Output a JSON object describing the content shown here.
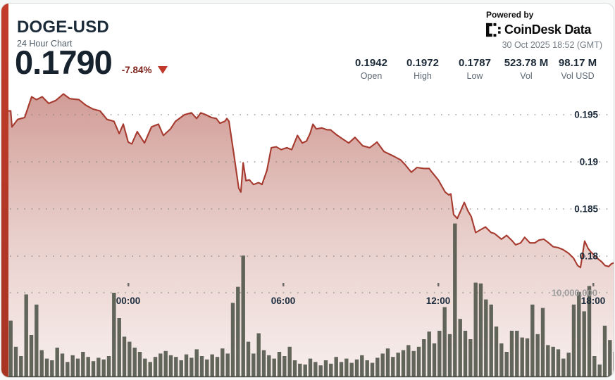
{
  "header": {
    "symbol": "DOGE-USD",
    "subtitle": "24 Hour Chart",
    "price": "0.1790",
    "change_pct": "-7.84%",
    "direction": "down"
  },
  "powered_by": {
    "label": "Powered by",
    "brand": "CoinDesk Data"
  },
  "timestamp": "30 Oct 2025 18:52 (GMT)",
  "stats": [
    {
      "value": "0.1942",
      "label": "Open"
    },
    {
      "value": "0.1972",
      "label": "High"
    },
    {
      "value": "0.1787",
      "label": "Low"
    },
    {
      "value": "523.78 M",
      "label": "Vol"
    },
    {
      "value": "98.17 M",
      "label": "Vol USD"
    }
  ],
  "colors": {
    "accent_red": "#c23b2b",
    "price_line": "#a63a2e",
    "area_top": "rgba(163,55,44,0.50)",
    "area_mid": "rgba(173,80,66,0.28)",
    "area_bottom": "rgba(181,96,80,0.10)",
    "volume_bar": "#55594d",
    "grid_dot": "#7d7d7d",
    "axis_text": "#1c2b3b",
    "muted_axis_text": "#9b9b9b",
    "negative": "#7e211b"
  },
  "chart_data": {
    "type": "area+bar",
    "title": "DOGE-USD 24 Hour Chart",
    "legend": "none",
    "grid": "dotted-horizontal",
    "x_axis": {
      "unit": "time (GMT), hours relative to 00:00",
      "range_t": [
        -4.55,
        18.87
      ],
      "ticks": [
        {
          "t": 0,
          "label": "00:00"
        },
        {
          "t": 6,
          "label": "06:00"
        },
        {
          "t": 12,
          "label": "12:00"
        },
        {
          "t": 18,
          "label": "18:00"
        }
      ]
    },
    "y_axis_price": {
      "side": "right",
      "visible_range": [
        0.1769,
        0.1978
      ],
      "ticks": [
        {
          "value": 0.195,
          "label": "0.195"
        },
        {
          "value": 0.19,
          "label": "0.19"
        },
        {
          "value": 0.185,
          "label": "0.185"
        },
        {
          "value": 0.18,
          "label": "0.18"
        }
      ]
    },
    "y_axis_volume": {
      "gridline_value": 10000000,
      "gridline_label": "10,000,000"
    },
    "price_series": {
      "name": "DOGE-USD price",
      "points": [
        [
          -4.55,
          0.1954
        ],
        [
          -4.5,
          0.1937
        ],
        [
          -4.28,
          0.1945
        ],
        [
          -4.01,
          0.1947
        ],
        [
          -3.74,
          0.1969
        ],
        [
          -3.55,
          0.1966
        ],
        [
          -3.33,
          0.1969
        ],
        [
          -3.08,
          0.1962
        ],
        [
          -2.81,
          0.1965
        ],
        [
          -2.51,
          0.1972
        ],
        [
          -2.26,
          0.1967
        ],
        [
          -1.91,
          0.1966
        ],
        [
          -1.64,
          0.196
        ],
        [
          -1.36,
          0.1956
        ],
        [
          -1.09,
          0.1954
        ],
        [
          -0.82,
          0.1945
        ],
        [
          -0.55,
          0.1943
        ],
        [
          -0.35,
          0.193
        ],
        [
          -0.19,
          0.194
        ],
        [
          0,
          0.1921
        ],
        [
          0.14,
          0.1919
        ],
        [
          0.35,
          0.1932
        ],
        [
          0.63,
          0.192
        ],
        [
          0.9,
          0.1937
        ],
        [
          1.17,
          0.194
        ],
        [
          1.36,
          0.1928
        ],
        [
          1.64,
          0.1935
        ],
        [
          1.83,
          0.1943
        ],
        [
          2.18,
          0.195
        ],
        [
          2.45,
          0.1952
        ],
        [
          2.65,
          0.1946
        ],
        [
          2.81,
          0.1952
        ],
        [
          3,
          0.195
        ],
        [
          3.22,
          0.1947
        ],
        [
          3.41,
          0.1946
        ],
        [
          3.55,
          0.1941
        ],
        [
          3.74,
          0.1943
        ],
        [
          3.82,
          0.1946
        ],
        [
          3.9,
          0.1943
        ],
        [
          4.09,
          0.1908
        ],
        [
          4.28,
          0.1872
        ],
        [
          4.36,
          0.1868
        ],
        [
          4.45,
          0.1899
        ],
        [
          4.56,
          0.188
        ],
        [
          4.69,
          0.1881
        ],
        [
          4.85,
          0.1876
        ],
        [
          5.05,
          0.1878
        ],
        [
          5.18,
          0.1876
        ],
        [
          5.37,
          0.1891
        ],
        [
          5.54,
          0.1915
        ],
        [
          5.73,
          0.1916
        ],
        [
          5.92,
          0.1913
        ],
        [
          6.14,
          0.1915
        ],
        [
          6.33,
          0.1913
        ],
        [
          6.55,
          0.1928
        ],
        [
          6.74,
          0.192
        ],
        [
          6.9,
          0.1922
        ],
        [
          7.04,
          0.193
        ],
        [
          7.15,
          0.194
        ],
        [
          7.28,
          0.1935
        ],
        [
          7.5,
          0.1936
        ],
        [
          7.69,
          0.1934
        ],
        [
          7.83,
          0.1934
        ],
        [
          8.05,
          0.1929
        ],
        [
          8.26,
          0.1925
        ],
        [
          8.54,
          0.192
        ],
        [
          8.78,
          0.1926
        ],
        [
          9.08,
          0.1917
        ],
        [
          9.35,
          0.1915
        ],
        [
          9.63,
          0.1921
        ],
        [
          9.9,
          0.1911
        ],
        [
          10.28,
          0.1906
        ],
        [
          10.55,
          0.1902
        ],
        [
          10.72,
          0.1897
        ],
        [
          10.96,
          0.1889
        ],
        [
          11.18,
          0.1894
        ],
        [
          11.45,
          0.1893
        ],
        [
          11.65,
          0.1893
        ],
        [
          11.73,
          0.189
        ],
        [
          12,
          0.1881
        ],
        [
          12.27,
          0.1868
        ],
        [
          12.41,
          0.1865
        ],
        [
          12.49,
          0.1866
        ],
        [
          12.6,
          0.1844
        ],
        [
          12.74,
          0.184
        ],
        [
          12.87,
          0.1848
        ],
        [
          13.01,
          0.1857
        ],
        [
          13.15,
          0.1848
        ],
        [
          13.28,
          0.1842
        ],
        [
          13.45,
          0.1825
        ],
        [
          13.64,
          0.1828
        ],
        [
          13.83,
          0.1831
        ],
        [
          14.05,
          0.1825
        ],
        [
          14.18,
          0.1824
        ],
        [
          14.45,
          0.1818
        ],
        [
          14.65,
          0.1822
        ],
        [
          14.84,
          0.1817
        ],
        [
          15,
          0.1812
        ],
        [
          15.19,
          0.1814
        ],
        [
          15.35,
          0.182
        ],
        [
          15.55,
          0.1814
        ],
        [
          15.74,
          0.1814
        ],
        [
          15.9,
          0.1817
        ],
        [
          16.09,
          0.1818
        ],
        [
          16.28,
          0.1814
        ],
        [
          16.45,
          0.181
        ],
        [
          16.64,
          0.1809
        ],
        [
          16.83,
          0.1807
        ],
        [
          17.05,
          0.1803
        ],
        [
          17.24,
          0.1798
        ],
        [
          17.4,
          0.179
        ],
        [
          17.51,
          0.1788
        ],
        [
          17.67,
          0.1816
        ],
        [
          17.81,
          0.1808
        ],
        [
          17.92,
          0.1804
        ],
        [
          18.05,
          0.1801
        ],
        [
          18.19,
          0.1797
        ],
        [
          18.33,
          0.1794
        ],
        [
          18.46,
          0.179
        ],
        [
          18.6,
          0.1789
        ],
        [
          18.71,
          0.1792
        ],
        [
          18.82,
          0.1793
        ]
      ]
    },
    "volume_series": {
      "name": "Volume",
      "unit": "millions",
      "start_t": -4.55,
      "step_t": 0.2,
      "values": [
        6.7,
        3.6,
        2.5,
        9.8,
        5.0,
        8.6,
        3.2,
        2.2,
        2.0,
        3.5,
        2.8,
        1.8,
        2.6,
        2.2,
        3.0,
        2.4,
        1.9,
        2.3,
        2.1,
        2.5,
        10.0,
        7.0,
        4.8,
        4.2,
        3.5,
        3.0,
        2.2,
        1.8,
        2.4,
        2.8,
        3.1,
        2.6,
        2.4,
        2.0,
        2.7,
        2.3,
        3.3,
        2.5,
        2.1,
        2.7,
        2.4,
        3.4,
        2.8,
        8.8,
        10.7,
        14.4,
        4.2,
        2.8,
        5.2,
        3.2,
        2.6,
        2.2,
        3.0,
        2.5,
        3.6,
        2.0,
        1.6,
        1.5,
        2.2,
        1.8,
        1.4,
        2.0,
        1.6,
        2.4,
        1.8,
        2.2,
        1.7,
        2.1,
        2.6,
        2.0,
        1.7,
        2.3,
        2.8,
        3.4,
        2.4,
        2.9,
        3.2,
        3.8,
        3.1,
        3.6,
        4.5,
        5.4,
        4.0,
        5.5,
        8.3,
        5.1,
        18.2,
        6.9,
        5.5,
        4.5,
        11.2,
        11.1,
        9.2,
        8.6,
        6.0,
        4.0,
        3.0,
        5.5,
        5.5,
        4.7,
        4.6,
        8.6,
        5.1,
        8.2,
        3.8,
        3.6,
        3.3,
        2.2,
        2.9,
        8.6,
        10.1,
        7.8,
        10.8,
        2.5,
        1.5,
        6.1,
        4.4,
        3.0
      ]
    }
  }
}
